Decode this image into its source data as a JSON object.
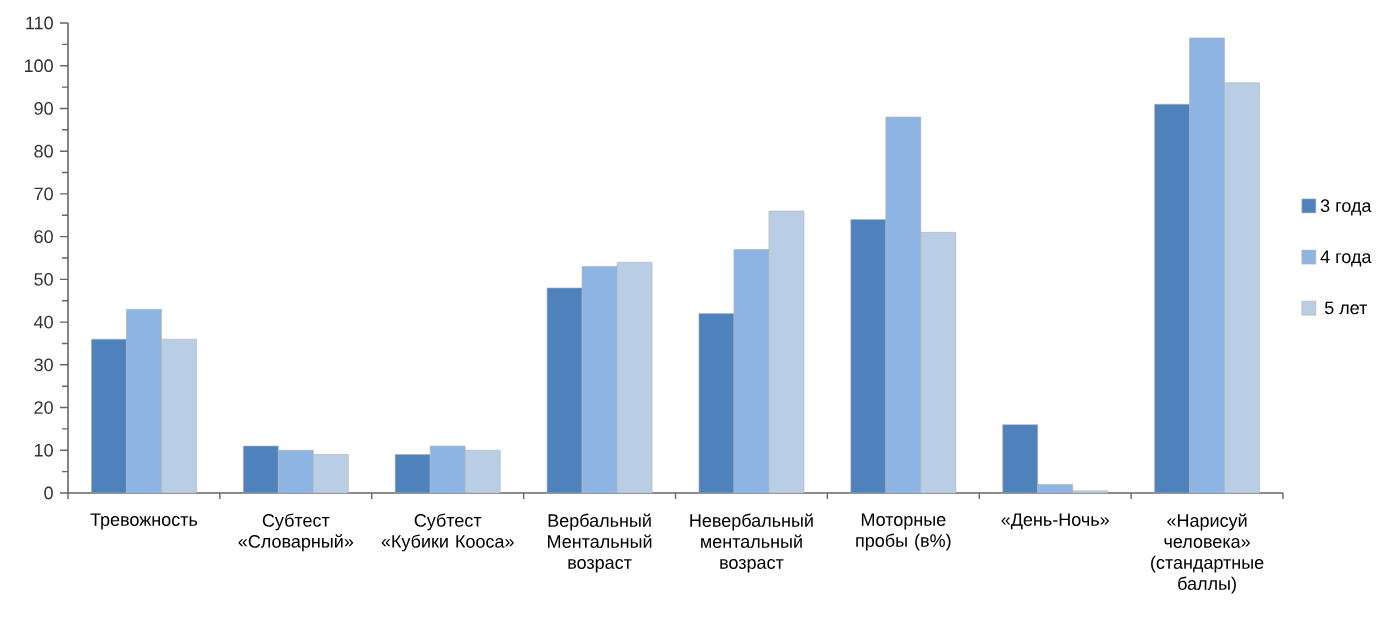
{
  "chart_data": {
    "type": "bar",
    "categories": [
      "Тревожность",
      "Субтест «Словарный»",
      "Субтест «Кубики Кооса»",
      "Вербальный Ментальный возраст",
      "Невербальный ментальный возраст",
      "Моторные пробы (в%)",
      "«День-Ночь»",
      "«Нарисуй человека» (стандартные баллы)"
    ],
    "series": [
      {
        "name": "3 года",
        "color": "#4f81bd",
        "values": [
          36,
          11,
          9,
          48,
          42,
          64,
          16,
          91
        ]
      },
      {
        "name": "4 года",
        "color": "#8eb4e3",
        "values": [
          43,
          10,
          11,
          53,
          57,
          88,
          2,
          106.5
        ]
      },
      {
        "name": "5 лет",
        "color": "#b9cde5",
        "values": [
          36,
          9,
          10,
          54,
          66,
          61,
          0.5,
          96
        ]
      }
    ],
    "ylim": [
      0,
      110
    ],
    "yticks": [
      0,
      10,
      20,
      30,
      40,
      50,
      60,
      70,
      80,
      90,
      100,
      110
    ],
    "legend": "right",
    "grid": false
  }
}
